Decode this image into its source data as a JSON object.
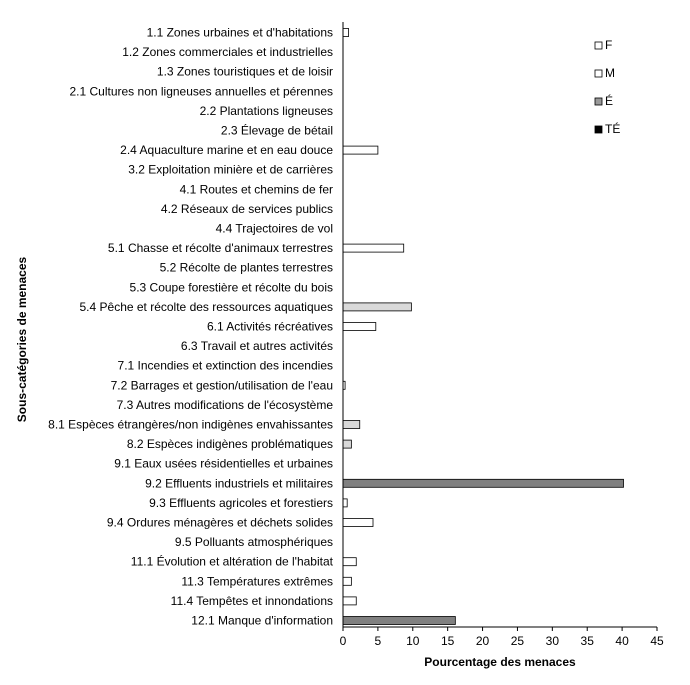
{
  "chart_data": {
    "type": "bar",
    "orientation": "horizontal",
    "xlabel": "Pourcentage des menaces",
    "ylabel": "Sous-catégories de menaces",
    "xlim": [
      0,
      45
    ],
    "xticks": [
      "0",
      "5",
      "10",
      "15",
      "20",
      "25",
      "30",
      "35",
      "40",
      "45"
    ],
    "legend_position": "top-right",
    "series": [
      {
        "name": "F",
        "color": "#ffffff"
      },
      {
        "name": "M",
        "color": "#ffffff"
      },
      {
        "name": "É",
        "color": "#999999"
      },
      {
        "name": "TÉ",
        "color": "#000000"
      }
    ],
    "bars": [
      {
        "category": "1.1 Zones urbaines et d'habitations",
        "value": 0.8,
        "color": "#ffffff"
      },
      {
        "category": "1.2 Zones commerciales et industrielles",
        "value": 0,
        "color": "#ffffff"
      },
      {
        "category": "1.3 Zones touristiques et de loisir",
        "value": 0,
        "color": "#ffffff"
      },
      {
        "category": "2.1 Cultures non ligneuses annuelles et pérennes",
        "value": 0,
        "color": "#ffffff"
      },
      {
        "category": "2.2 Plantations ligneuses",
        "value": 0,
        "color": "#ffffff"
      },
      {
        "category": "2.3 Élevage de bétail",
        "value": 0,
        "color": "#ffffff"
      },
      {
        "category": "2.4 Aquaculture marine et en eau douce",
        "value": 5.0,
        "color": "#ffffff"
      },
      {
        "category": "3.2 Exploitation minière et de carrières",
        "value": 0,
        "color": "#ffffff"
      },
      {
        "category": "4.1 Routes et chemins de fer",
        "value": 0,
        "color": "#ffffff"
      },
      {
        "category": "4.2 Réseaux de services publics",
        "value": 0,
        "color": "#ffffff"
      },
      {
        "category": "4.4 Trajectoires de vol",
        "value": 0,
        "color": "#ffffff"
      },
      {
        "category": "5.1 Chasse et récolte d'animaux terrestres",
        "value": 8.7,
        "color": "#ffffff"
      },
      {
        "category": "5.2 Récolte de plantes terrestres",
        "value": 0,
        "color": "#ffffff"
      },
      {
        "category": "5.3 Coupe forestière et récolte du bois",
        "value": 0,
        "color": "#ffffff"
      },
      {
        "category": "5.4 Pêche et récolte des ressources aquatiques",
        "value": 9.8,
        "color": "#d9d9d9"
      },
      {
        "category": "6.1 Activités récréatives",
        "value": 4.7,
        "color": "#ffffff"
      },
      {
        "category": "6.3 Travail et autres activités",
        "value": 0,
        "color": "#ffffff"
      },
      {
        "category": "7.1 Incendies et extinction des incendies",
        "value": 0,
        "color": "#ffffff"
      },
      {
        "category": "7.2 Barrages et gestion/utilisation de l'eau",
        "value": 0.3,
        "color": "#ffffff"
      },
      {
        "category": "7.3 Autres modifications de l'écosystème",
        "value": 0,
        "color": "#ffffff"
      },
      {
        "category": "8.1 Espèces étrangères/non indigènes envahissantes",
        "value": 2.4,
        "color": "#d9d9d9"
      },
      {
        "category": "8.2 Espèces indigènes problématiques",
        "value": 1.2,
        "color": "#d9d9d9"
      },
      {
        "category": "9.1 Eaux usées résidentielles et urbaines",
        "value": 0,
        "color": "#ffffff"
      },
      {
        "category": "9.2 Effluents industriels et militaires",
        "value": 40.2,
        "color": "#808080"
      },
      {
        "category": "9.3 Effluents agricoles et forestiers",
        "value": 0.6,
        "color": "#ffffff"
      },
      {
        "category": "9.4 Ordures ménagères et déchets solides",
        "value": 4.3,
        "color": "#ffffff"
      },
      {
        "category": "9.5 Polluants atmosphériques",
        "value": 0,
        "color": "#ffffff"
      },
      {
        "category": "11.1 Évolution et altération de l'habitat",
        "value": 1.9,
        "color": "#ffffff"
      },
      {
        "category": "11.3 Températures extrêmes",
        "value": 1.2,
        "color": "#ffffff"
      },
      {
        "category": "11.4 Tempêtes et innondations",
        "value": 1.9,
        "color": "#ffffff"
      },
      {
        "category": "12.1 Manque d'information",
        "value": 16.1,
        "color": "#808080"
      }
    ]
  }
}
